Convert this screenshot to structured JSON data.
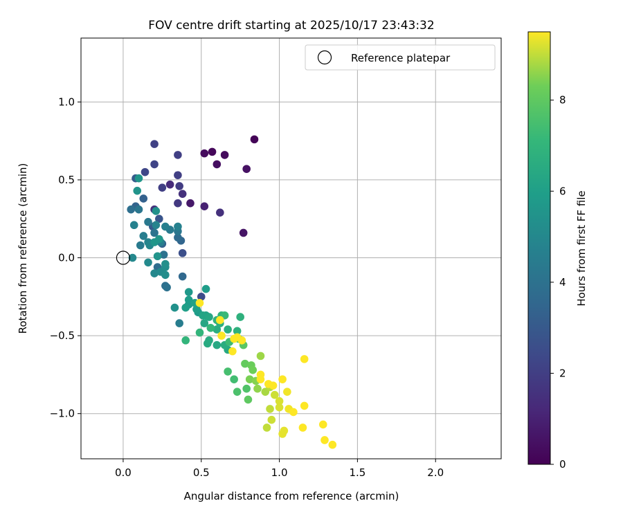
{
  "chart_data": {
    "type": "scatter",
    "title": "FOV centre drift starting at 2025/10/17 23:43:32",
    "xlabel": "Angular distance from reference (arcmin)",
    "ylabel": "Rotation from reference (arcmin)",
    "xlim": [
      -0.27,
      2.42
    ],
    "ylim": [
      -1.29,
      1.41
    ],
    "xticks": [
      0.0,
      0.5,
      1.0,
      1.5,
      2.0
    ],
    "xtick_labels": [
      "0.0",
      "0.5",
      "1.0",
      "1.5",
      "2.0"
    ],
    "yticks": [
      -1.0,
      -0.5,
      0.0,
      0.5,
      1.0
    ],
    "ytick_labels": [
      "−1.0",
      "−0.5",
      "0.0",
      "0.5",
      "1.0"
    ],
    "grid": true,
    "legend": {
      "position": "top-right",
      "entries": [
        "Reference platepar"
      ]
    },
    "reference_point": {
      "x": 0.0,
      "y": 0.0,
      "label": "Reference platepar"
    },
    "colorbar": {
      "label": "Hours from first FF file",
      "range": [
        0,
        9.5
      ],
      "ticks": [
        0,
        2,
        4,
        6,
        8
      ],
      "tick_labels": [
        "0",
        "2",
        "4",
        "6",
        "8"
      ],
      "colormap": "viridis"
    },
    "series": [
      {
        "name": "FOV centre",
        "columns": [
          "x",
          "y",
          "hours"
        ],
        "points": [
          [
            0.84,
            0.76,
            0.1
          ],
          [
            0.57,
            0.68,
            0.2
          ],
          [
            0.52,
            0.67,
            0.3
          ],
          [
            0.65,
            0.66,
            0.3
          ],
          [
            0.6,
            0.6,
            0.4
          ],
          [
            0.79,
            0.57,
            0.5
          ],
          [
            0.77,
            0.16,
            0.6
          ],
          [
            0.43,
            0.35,
            0.7
          ],
          [
            0.52,
            0.33,
            1.0
          ],
          [
            0.3,
            0.47,
            1.3
          ],
          [
            0.38,
            0.41,
            1.5
          ],
          [
            0.62,
            0.29,
            1.5
          ],
          [
            0.2,
            0.31,
            1.5
          ],
          [
            0.35,
            0.35,
            1.8
          ],
          [
            0.36,
            0.46,
            1.9
          ],
          [
            0.25,
            0.45,
            2.0
          ],
          [
            0.35,
            0.66,
            2.0
          ],
          [
            0.35,
            0.53,
            2.0
          ],
          [
            0.2,
            0.73,
            2.1
          ],
          [
            0.2,
            0.6,
            2.2
          ],
          [
            0.14,
            0.55,
            2.3
          ],
          [
            0.5,
            -0.25,
            2.5
          ],
          [
            0.38,
            0.03,
            2.6
          ],
          [
            0.23,
            0.25,
            2.8
          ],
          [
            0.19,
            0.2,
            3.0
          ],
          [
            0.08,
            0.51,
            3.1
          ],
          [
            0.13,
            0.38,
            3.3
          ],
          [
            0.08,
            0.33,
            3.4
          ],
          [
            0.25,
            0.09,
            3.4
          ],
          [
            0.37,
            0.11,
            3.5
          ],
          [
            0.38,
            -0.12,
            3.6
          ],
          [
            0.35,
            0.13,
            3.7
          ],
          [
            0.22,
            -0.06,
            3.8
          ],
          [
            0.27,
            -0.18,
            3.9
          ],
          [
            0.05,
            0.31,
            3.9
          ],
          [
            0.28,
            -0.19,
            4.0
          ],
          [
            0.26,
            0.02,
            4.0
          ],
          [
            0.2,
            0.16,
            4.1
          ],
          [
            0.35,
            0.17,
            4.2
          ],
          [
            0.1,
            0.31,
            4.2
          ],
          [
            0.16,
            0.23,
            4.3
          ],
          [
            0.3,
            0.18,
            4.4
          ],
          [
            0.11,
            0.08,
            4.4
          ],
          [
            0.13,
            0.14,
            4.5
          ],
          [
            0.36,
            -0.42,
            4.5
          ],
          [
            0.24,
            0.1,
            4.6
          ],
          [
            0.27,
            0.2,
            4.6
          ],
          [
            0.35,
            0.2,
            4.7
          ],
          [
            0.07,
            0.21,
            4.7
          ],
          [
            0.21,
            0.21,
            4.8
          ],
          [
            0.16,
            0.1,
            4.8
          ],
          [
            0.17,
            0.08,
            4.9
          ],
          [
            0.06,
            0.0,
            5.0
          ],
          [
            0.2,
            -0.1,
            5.0
          ],
          [
            0.24,
            -0.09,
            5.1
          ],
          [
            0.16,
            -0.03,
            5.1
          ],
          [
            0.27,
            -0.11,
            5.2
          ],
          [
            0.27,
            -0.06,
            5.2
          ],
          [
            0.27,
            -0.04,
            5.3
          ],
          [
            0.33,
            -0.32,
            5.4
          ],
          [
            0.21,
            0.3,
            5.4
          ],
          [
            0.22,
            0.01,
            5.5
          ],
          [
            0.09,
            0.43,
            5.5
          ],
          [
            0.1,
            0.51,
            5.6
          ],
          [
            0.2,
            0.1,
            5.6
          ],
          [
            0.23,
            0.12,
            5.6
          ],
          [
            0.42,
            -0.22,
            5.7
          ],
          [
            0.42,
            -0.3,
            5.8
          ],
          [
            0.48,
            -0.35,
            5.8
          ],
          [
            0.42,
            -0.27,
            5.9
          ],
          [
            0.53,
            -0.2,
            5.9
          ],
          [
            0.4,
            -0.32,
            6.0
          ],
          [
            0.47,
            -0.33,
            6.0
          ],
          [
            0.53,
            -0.37,
            6.1
          ],
          [
            0.46,
            -0.29,
            6.1
          ],
          [
            0.51,
            -0.37,
            6.2
          ],
          [
            0.52,
            -0.42,
            6.3
          ],
          [
            0.55,
            -0.38,
            6.3
          ],
          [
            0.6,
            -0.56,
            6.4
          ],
          [
            0.67,
            -0.59,
            6.4
          ],
          [
            0.55,
            -0.53,
            6.5
          ],
          [
            0.54,
            -0.55,
            6.5
          ],
          [
            0.6,
            -0.46,
            6.6
          ],
          [
            0.65,
            -0.56,
            6.6
          ],
          [
            0.67,
            -0.46,
            6.7
          ],
          [
            0.62,
            -0.42,
            6.7
          ],
          [
            0.73,
            -0.47,
            6.8
          ],
          [
            0.75,
            -0.38,
            6.8
          ],
          [
            0.6,
            -0.4,
            6.9
          ],
          [
            0.63,
            -0.37,
            6.9
          ],
          [
            0.4,
            -0.53,
            7.0
          ],
          [
            0.49,
            -0.48,
            7.0
          ],
          [
            0.56,
            -0.45,
            7.1
          ],
          [
            0.65,
            -0.37,
            7.2
          ],
          [
            0.68,
            -0.54,
            7.3
          ],
          [
            0.71,
            -0.78,
            7.4
          ],
          [
            0.67,
            -0.73,
            7.5
          ],
          [
            0.73,
            -0.86,
            7.6
          ],
          [
            0.79,
            -0.84,
            7.7
          ],
          [
            0.74,
            -0.52,
            7.8
          ],
          [
            0.77,
            -0.56,
            7.9
          ],
          [
            0.8,
            -0.91,
            8.0
          ],
          [
            0.78,
            -0.68,
            8.1
          ],
          [
            0.82,
            -0.69,
            8.2
          ],
          [
            0.83,
            -0.72,
            8.3
          ],
          [
            0.81,
            -0.78,
            8.4
          ],
          [
            0.85,
            -0.79,
            8.5
          ],
          [
            0.86,
            -0.84,
            8.6
          ],
          [
            0.88,
            -0.63,
            8.7
          ],
          [
            0.91,
            -0.86,
            8.8
          ],
          [
            0.94,
            -0.83,
            8.9
          ],
          [
            0.94,
            -0.97,
            9.0
          ],
          [
            0.92,
            -1.09,
            9.0
          ],
          [
            0.95,
            -1.04,
            9.1
          ],
          [
            0.97,
            -0.88,
            9.1
          ],
          [
            1.0,
            -0.92,
            9.2
          ],
          [
            1.0,
            -0.96,
            9.2
          ],
          [
            1.02,
            -1.13,
            9.3
          ],
          [
            1.03,
            -1.11,
            9.3
          ],
          [
            1.05,
            -0.86,
            9.4
          ],
          [
            1.06,
            -0.97,
            9.4
          ],
          [
            1.09,
            -0.99,
            9.5
          ],
          [
            1.15,
            -1.09,
            9.5
          ],
          [
            1.16,
            -0.95,
            9.5
          ],
          [
            1.28,
            -1.07,
            9.6
          ],
          [
            1.29,
            -1.17,
            9.6
          ],
          [
            1.34,
            -1.2,
            9.6
          ],
          [
            1.16,
            -0.65,
            9.7
          ],
          [
            1.02,
            -0.78,
            9.7
          ],
          [
            0.96,
            -0.82,
            9.7
          ],
          [
            0.88,
            -0.75,
            9.8
          ],
          [
            0.76,
            -0.53,
            9.8
          ],
          [
            0.73,
            -0.51,
            9.8
          ],
          [
            0.71,
            -0.52,
            9.9
          ],
          [
            0.7,
            -0.6,
            9.9
          ],
          [
            0.63,
            -0.5,
            9.9
          ],
          [
            0.62,
            -0.4,
            9.9
          ],
          [
            0.49,
            -0.29,
            9.9
          ],
          [
            0.88,
            -0.78,
            9.9
          ],
          [
            0.93,
            -0.81,
            9.9
          ]
        ]
      }
    ]
  }
}
